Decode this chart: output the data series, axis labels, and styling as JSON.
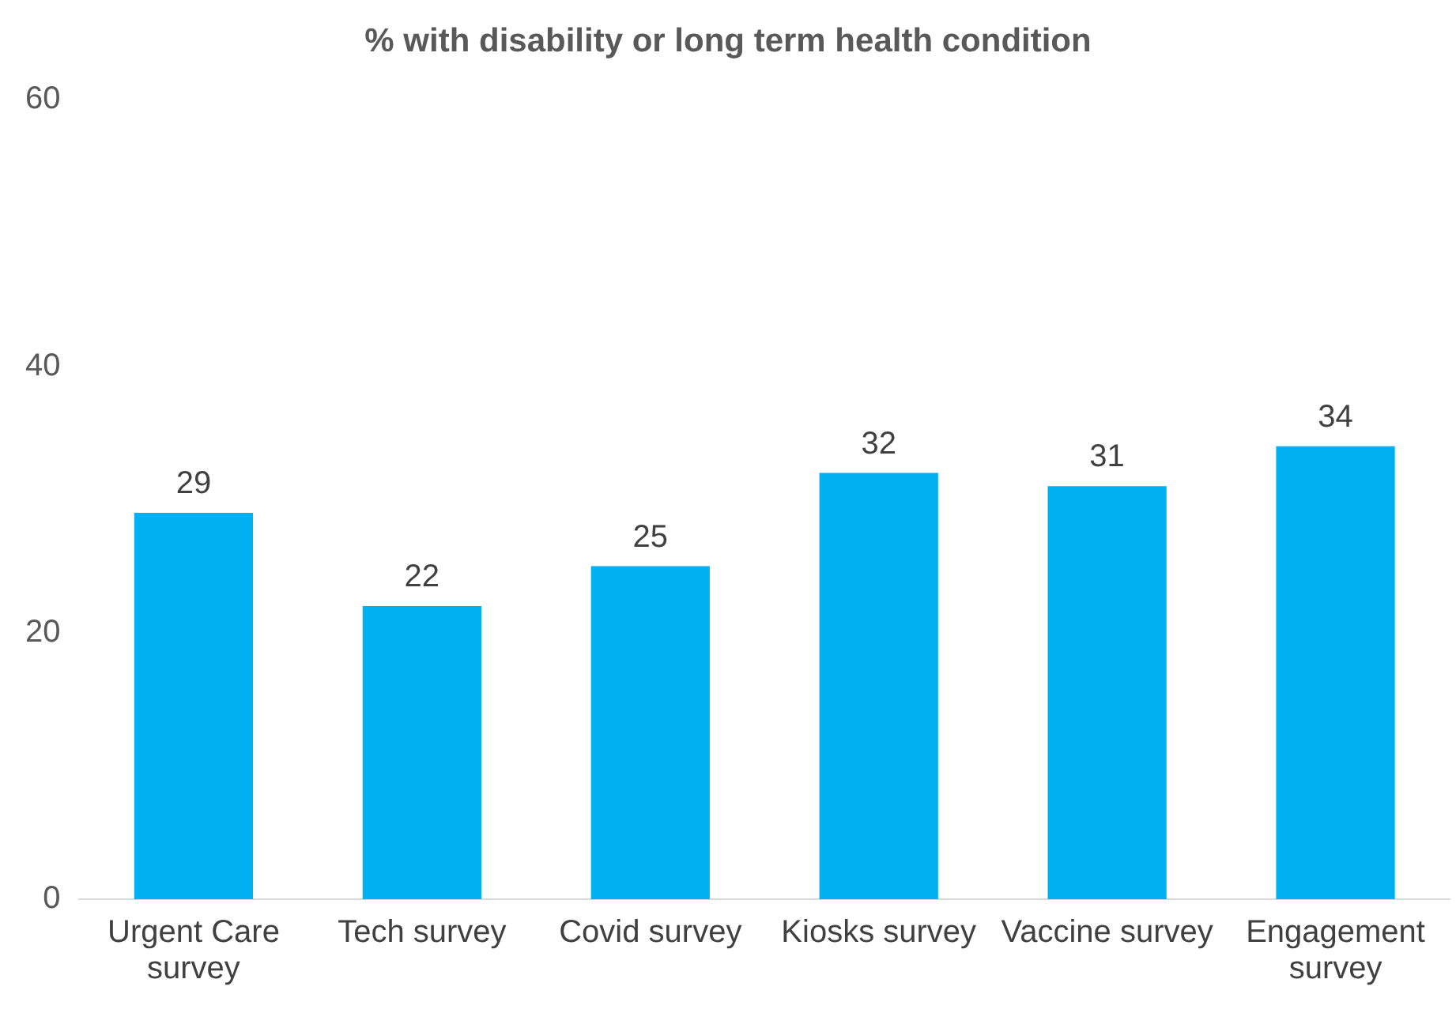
{
  "chart_data": {
    "type": "bar",
    "title": "% with disability or long term health condition",
    "categories": [
      "Urgent Care survey",
      "Tech survey",
      "Covid survey",
      "Kiosks survey",
      "Vaccine survey",
      "Engagement survey"
    ],
    "values": [
      29,
      22,
      25,
      32,
      31,
      34
    ],
    "color": "#00b0f0",
    "ylim": [
      0,
      60
    ],
    "yticks": [
      0,
      20,
      40,
      60
    ],
    "grid": false,
    "legend": false,
    "data_labels": true
  }
}
